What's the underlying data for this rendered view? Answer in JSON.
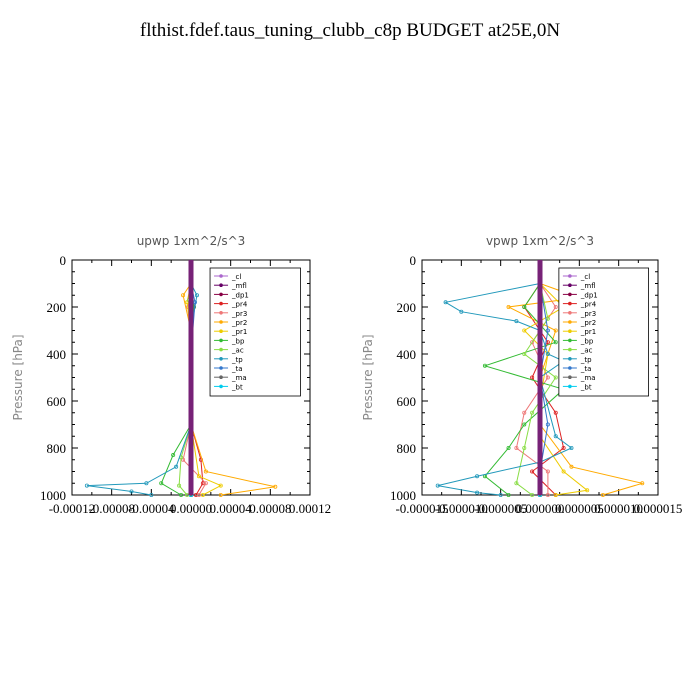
{
  "page": {
    "title": "flthist.fdef.taus_tuning_clubb_c8p  BUDGET at25E,0N"
  },
  "chart_data": [
    {
      "type": "line",
      "title": "upwp   1xm^2/s^3",
      "ylabel": "Pressure [hPa]",
      "xlabel": "",
      "xlim": [
        -0.00012,
        0.00012
      ],
      "ylim": [
        1000,
        0
      ],
      "x_tick_labels": [
        "-0.00012",
        "-0.00008",
        "-0.00004",
        "0.00000",
        "0.00004",
        "0.00008",
        "0.00012"
      ],
      "y_ticks": [
        0,
        200,
        400,
        600,
        800,
        1000
      ],
      "legend_position": "top-right",
      "series": [
        {
          "name": "_cl",
          "color": "#aa66cc",
          "values": [
            [
              0,
              100
            ],
            [
              0,
              300
            ],
            [
              0,
              500
            ],
            [
              0,
              700
            ],
            [
              0,
              900
            ],
            [
              0,
              1000
            ]
          ]
        },
        {
          "name": "_mfl",
          "color": "#660066",
          "values": [
            [
              0,
              100
            ],
            [
              0,
              300
            ],
            [
              0,
              500
            ],
            [
              0,
              700
            ],
            [
              0,
              900
            ],
            [
              0,
              1000
            ]
          ]
        },
        {
          "name": "_dp1",
          "color": "#880044",
          "values": [
            [
              0,
              100
            ],
            [
              0,
              300
            ],
            [
              0,
              500
            ],
            [
              0,
              700
            ],
            [
              0,
              900
            ],
            [
              0,
              1000
            ]
          ]
        },
        {
          "name": "_pr4",
          "color": "#dd2222",
          "values": [
            [
              0,
              100
            ],
            [
              3e-06,
              200
            ],
            [
              0,
              400
            ],
            [
              0,
              700
            ],
            [
              1e-05,
              850
            ],
            [
              1.2e-05,
              950
            ],
            [
              5e-06,
              1000
            ]
          ]
        },
        {
          "name": "_pr3",
          "color": "#ee7777",
          "values": [
            [
              0,
              100
            ],
            [
              -3e-06,
              200
            ],
            [
              0,
              400
            ],
            [
              0,
              700
            ],
            [
              -8e-06,
              850
            ],
            [
              1.5e-05,
              950
            ],
            [
              8e-06,
              1000
            ]
          ]
        },
        {
          "name": "_pr2",
          "color": "#ffaa00",
          "values": [
            [
              0,
              100
            ],
            [
              -8e-06,
              150
            ],
            [
              0,
              300
            ],
            [
              0,
              700
            ],
            [
              1.5e-05,
              900
            ],
            [
              8.5e-05,
              965
            ],
            [
              3e-05,
              1000
            ]
          ]
        },
        {
          "name": "_pr1",
          "color": "#eecc00",
          "values": [
            [
              0,
              100
            ],
            [
              -4e-06,
              180
            ],
            [
              0,
              300
            ],
            [
              0,
              700
            ],
            [
              8e-06,
              920
            ],
            [
              3e-05,
              960
            ],
            [
              1.2e-05,
              1000
            ]
          ]
        },
        {
          "name": "_bp",
          "color": "#33bb33",
          "values": [
            [
              0,
              100
            ],
            [
              3e-06,
              200
            ],
            [
              0,
              400
            ],
            [
              0,
              700
            ],
            [
              -1.8e-05,
              830
            ],
            [
              -3e-05,
              950
            ],
            [
              -1e-05,
              1000
            ]
          ]
        },
        {
          "name": "_ac",
          "color": "#88dd44",
          "values": [
            [
              0,
              100
            ],
            [
              -2e-06,
              170
            ],
            [
              0,
              400
            ],
            [
              0,
              700
            ],
            [
              -1e-05,
              840
            ],
            [
              -1.2e-05,
              960
            ],
            [
              -4e-06,
              1000
            ]
          ]
        },
        {
          "name": "_tp",
          "color": "#2299bb",
          "values": [
            [
              0,
              100
            ],
            [
              6e-06,
              150
            ],
            [
              0,
              300
            ],
            [
              0,
              700
            ],
            [
              -1.5e-05,
              880
            ],
            [
              -4.5e-05,
              950
            ],
            [
              -0.000105,
              960
            ],
            [
              -6e-05,
              985
            ],
            [
              -4e-05,
              1000
            ]
          ]
        },
        {
          "name": "_ta",
          "color": "#3377cc",
          "values": [
            [
              0,
              100
            ],
            [
              4e-06,
              180
            ],
            [
              0,
              400
            ],
            [
              0,
              700
            ],
            [
              0,
              900
            ],
            [
              0,
              1000
            ]
          ]
        },
        {
          "name": "_ma",
          "color": "#666666",
          "values": [
            [
              0,
              100
            ],
            [
              0,
              300
            ],
            [
              0,
              500
            ],
            [
              0,
              700
            ],
            [
              0,
              900
            ],
            [
              0,
              1000
            ]
          ]
        },
        {
          "name": "_bt",
          "color": "#00ccee",
          "values": [
            [
              0,
              100
            ],
            [
              0,
              300
            ],
            [
              0,
              500
            ],
            [
              0,
              700
            ],
            [
              0,
              900
            ],
            [
              0,
              1000
            ]
          ]
        }
      ]
    },
    {
      "type": "line",
      "title": "vpwp   1xm^2/s^3",
      "ylabel": "Pressure [hPa]",
      "xlabel": "",
      "xlim": [
        -1.5e-05,
        1.5e-05
      ],
      "ylim": [
        1000,
        0
      ],
      "x_tick_labels": [
        "-0.000015",
        "-0.000010",
        "-0.000005",
        "0.000000",
        "0.000005",
        "0.000010",
        "0.000015"
      ],
      "y_ticks": [
        0,
        200,
        400,
        600,
        800,
        1000
      ],
      "legend_position": "top-right",
      "series": [
        {
          "name": "_cl",
          "color": "#aa66cc",
          "values": [
            [
              0,
              100
            ],
            [
              0,
              300
            ],
            [
              0,
              500
            ],
            [
              0,
              700
            ],
            [
              0,
              900
            ],
            [
              0,
              1000
            ]
          ]
        },
        {
          "name": "_mfl",
          "color": "#660066",
          "values": [
            [
              0,
              100
            ],
            [
              0,
              300
            ],
            [
              0,
              500
            ],
            [
              0,
              700
            ],
            [
              0,
              900
            ],
            [
              0,
              1000
            ]
          ]
        },
        {
          "name": "_dp1",
          "color": "#880044",
          "values": [
            [
              0,
              100
            ],
            [
              0,
              300
            ],
            [
              0,
              500
            ],
            [
              0,
              700
            ],
            [
              0,
              900
            ],
            [
              0,
              1000
            ]
          ]
        },
        {
          "name": "_pr4",
          "color": "#dd2222",
          "values": [
            [
              0,
              100
            ],
            [
              -2e-06,
              200
            ],
            [
              1e-06,
              350
            ],
            [
              -1e-06,
              500
            ],
            [
              2e-06,
              650
            ],
            [
              3e-06,
              800
            ],
            [
              -1e-06,
              900
            ],
            [
              2e-06,
              1000
            ]
          ]
        },
        {
          "name": "_pr3",
          "color": "#ee7777",
          "values": [
            [
              0,
              100
            ],
            [
              2e-06,
              200
            ],
            [
              -1e-06,
              350
            ],
            [
              1e-06,
              500
            ],
            [
              -2e-06,
              650
            ],
            [
              -3e-06,
              800
            ],
            [
              1e-06,
              900
            ],
            [
              1e-06,
              1000
            ]
          ]
        },
        {
          "name": "_pr2",
          "color": "#ffaa00",
          "values": [
            [
              0,
              100
            ],
            [
              5e-06,
              160
            ],
            [
              -4e-06,
              200
            ],
            [
              2e-06,
              300
            ],
            [
              0,
              500
            ],
            [
              0,
              700
            ],
            [
              4e-06,
              880
            ],
            [
              1.3e-05,
              950
            ],
            [
              8e-06,
              1000
            ]
          ]
        },
        {
          "name": "_pr1",
          "color": "#eecc00",
          "values": [
            [
              0,
              100
            ],
            [
              3e-06,
              200
            ],
            [
              -2e-06,
              300
            ],
            [
              1e-06,
              400
            ],
            [
              0,
              600
            ],
            [
              0,
              750
            ],
            [
              3e-06,
              900
            ],
            [
              6e-06,
              980
            ],
            [
              2e-06,
              1000
            ]
          ]
        },
        {
          "name": "_bp",
          "color": "#33bb33",
          "values": [
            [
              0,
              100
            ],
            [
              -2e-06,
              200
            ],
            [
              2e-06,
              350
            ],
            [
              -7e-06,
              450
            ],
            [
              3e-06,
              550
            ],
            [
              -2e-06,
              700
            ],
            [
              -4e-06,
              800
            ],
            [
              -7e-06,
              920
            ],
            [
              -4e-06,
              1000
            ]
          ]
        },
        {
          "name": "_ac",
          "color": "#88dd44",
          "values": [
            [
              0,
              100
            ],
            [
              1e-06,
              250
            ],
            [
              -2e-06,
              400
            ],
            [
              2e-06,
              500
            ],
            [
              -1e-06,
              650
            ],
            [
              -2e-06,
              800
            ],
            [
              -3e-06,
              950
            ],
            [
              -1e-06,
              1000
            ]
          ]
        },
        {
          "name": "_tp",
          "color": "#2299bb",
          "values": [
            [
              0,
              100
            ],
            [
              -1.2e-05,
              180
            ],
            [
              -1e-05,
              220
            ],
            [
              -3e-06,
              260
            ],
            [
              0,
              300
            ],
            [
              1e-06,
              400
            ],
            [
              3e-06,
              430
            ],
            [
              0,
              500
            ],
            [
              2e-06,
              750
            ],
            [
              4e-06,
              800
            ],
            [
              0,
              860
            ],
            [
              -8e-06,
              920
            ],
            [
              -1.3e-05,
              960
            ],
            [
              -8e-06,
              990
            ],
            [
              -5e-06,
              1000
            ]
          ]
        },
        {
          "name": "_ta",
          "color": "#3377cc",
          "values": [
            [
              0,
              100
            ],
            [
              1e-06,
              300
            ],
            [
              0,
              500
            ],
            [
              1e-06,
              700
            ],
            [
              0,
              900
            ],
            [
              0,
              1000
            ]
          ]
        },
        {
          "name": "_ma",
          "color": "#666666",
          "values": [
            [
              0,
              100
            ],
            [
              0,
              300
            ],
            [
              0,
              500
            ],
            [
              0,
              700
            ],
            [
              0,
              900
            ],
            [
              0,
              1000
            ]
          ]
        },
        {
          "name": "_bt",
          "color": "#00ccee",
          "values": [
            [
              0,
              100
            ],
            [
              0,
              300
            ],
            [
              0,
              500
            ],
            [
              0,
              700
            ],
            [
              0,
              900
            ],
            [
              0,
              1000
            ]
          ]
        }
      ]
    }
  ]
}
